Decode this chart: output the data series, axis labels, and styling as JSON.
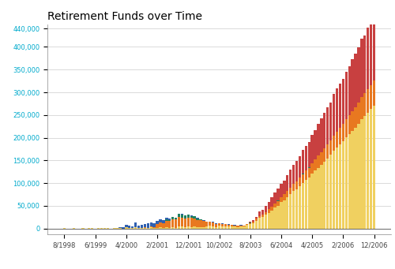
{
  "title": "Retirement Funds over Time",
  "title_fontsize": 10,
  "title_color": "#000000",
  "background_color": "#ffffff",
  "grid_color": "#cccccc",
  "bar_colors": [
    "#f0d060",
    "#e87820",
    "#208060",
    "#3060b0",
    "#c84040"
  ],
  "start_year": 1998,
  "start_month": 8,
  "end_year": 2006,
  "end_month": 12,
  "ylim": [
    -12000,
    450000
  ],
  "ytick_vals": [
    0,
    50000,
    100000,
    150000,
    200000,
    250000,
    300000,
    350000,
    400000,
    440000
  ],
  "ytick_color": "#00aacc",
  "xtick_color": "#444444",
  "figsize": [
    5.0,
    3.41
  ],
  "dpi": 100
}
